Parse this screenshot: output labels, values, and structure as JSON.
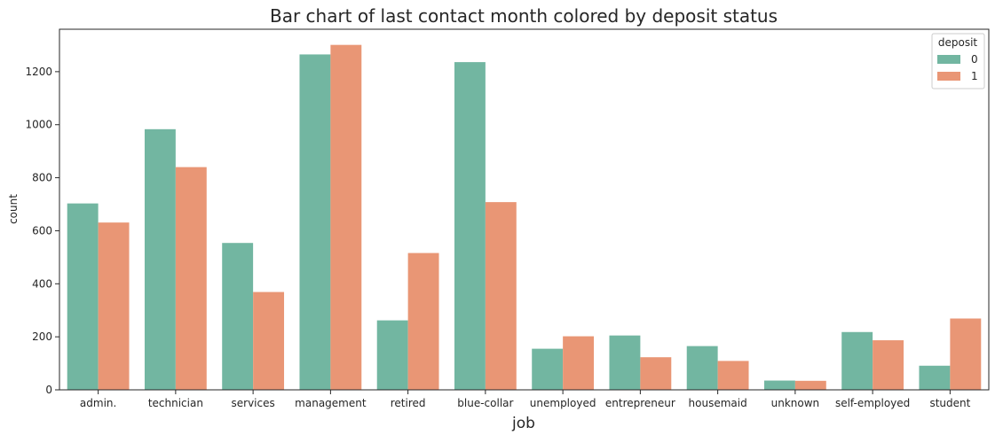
{
  "chart_data": {
    "type": "bar",
    "title": "Bar chart of last contact month colored by deposit status",
    "xlabel": "job",
    "ylabel": "count",
    "categories": [
      "admin.",
      "technician",
      "services",
      "management",
      "retired",
      "blue-collar",
      "unemployed",
      "entrepreneur",
      "housemaid",
      "unknown",
      "self-employed",
      "student"
    ],
    "series": [
      {
        "name": "0",
        "color": "#72b6a1",
        "values": [
          703,
          983,
          554,
          1265,
          262,
          1236,
          155,
          205,
          165,
          35,
          218,
          91
        ]
      },
      {
        "name": "1",
        "color": "#e99675",
        "values": [
          631,
          840,
          369,
          1301,
          516,
          708,
          202,
          123,
          109,
          34,
          187,
          269
        ]
      }
    ],
    "ylim": [
      0,
      1360
    ],
    "yticks": [
      0,
      200,
      400,
      600,
      800,
      1000,
      1200
    ],
    "legend": {
      "title": "deposit",
      "placement": "top-right"
    },
    "grid": false
  }
}
